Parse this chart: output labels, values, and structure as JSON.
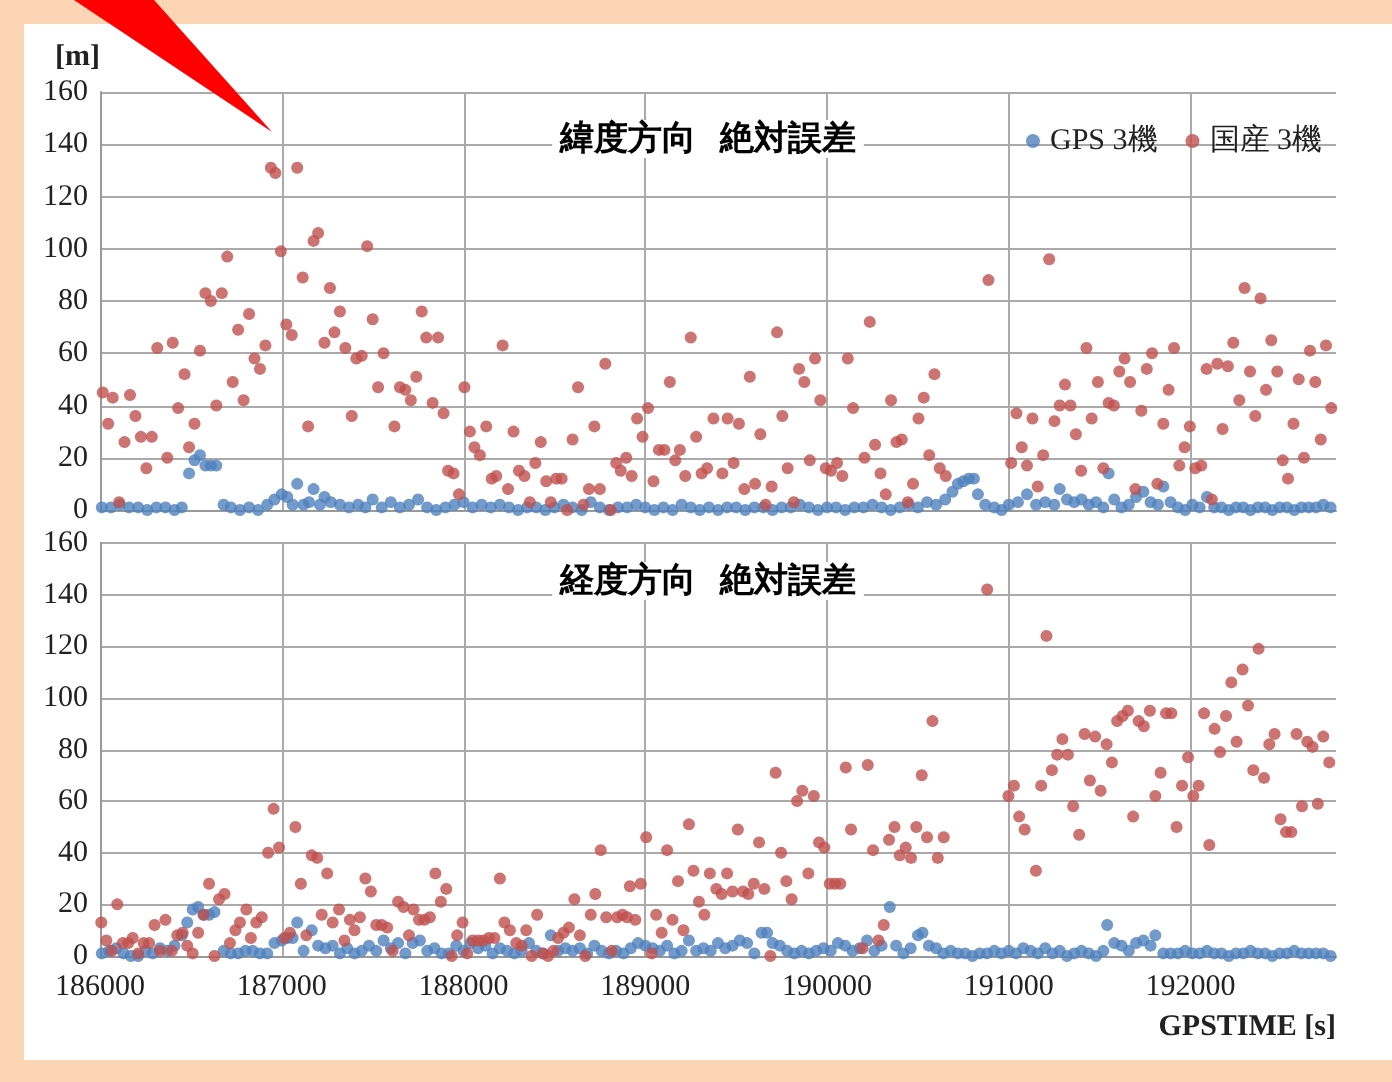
{
  "chart_data": [
    {
      "type": "scatter",
      "title": "緯度方向  絶対誤差",
      "ylabel": "[m]",
      "xlim": [
        186000,
        192800
      ],
      "xticks": [
        186000,
        187000,
        188000,
        189000,
        190000,
        191000,
        192000
      ],
      "ylim": [
        0,
        160
      ],
      "yticks": [
        0,
        20,
        40,
        60,
        80,
        100,
        120,
        140,
        160
      ],
      "grid": true,
      "legend": "top right",
      "marker": "circle",
      "tick_labels": "y",
      "series": [
        {
          "name": "GPS 3機",
          "color": "#4f81bd",
          "x": [
            186010,
            186060,
            186110,
            186160,
            186210,
            186260,
            186310,
            186360,
            186410,
            186450,
            186490,
            186520,
            186550,
            186580,
            186610,
            186640,
            186680,
            186720,
            186770,
            186820,
            186870,
            186920,
            186960,
            187000,
            187030,
            187060,
            187085,
            187120,
            187150,
            187175,
            187210,
            187235,
            187270,
            187320,
            187370,
            187420,
            187460,
            187500,
            187550,
            187600,
            187650,
            187700,
            187750,
            187800,
            187850,
            187900,
            187950,
            188000,
            188050,
            188100,
            188150,
            188200,
            188250,
            188300,
            188350,
            188400,
            188450,
            188500,
            188550,
            188600,
            188650,
            188700,
            188750,
            188800,
            188850,
            188900,
            188950,
            189000,
            189050,
            189100,
            189150,
            189200,
            189250,
            189300,
            189350,
            189400,
            189450,
            189500,
            189550,
            189600,
            189650,
            189700,
            189750,
            189800,
            189850,
            189900,
            189950,
            190000,
            190050,
            190100,
            190150,
            190200,
            190250,
            190300,
            190350,
            190400,
            190450,
            190500,
            190550,
            190600,
            190650,
            190690,
            190720,
            190750,
            190780,
            190808,
            190830,
            190870,
            190920,
            190960,
            191000,
            191050,
            191100,
            191150,
            191200,
            191250,
            191280,
            191320,
            191360,
            191400,
            191440,
            191480,
            191520,
            191549,
            191580,
            191620,
            191660,
            191700,
            191740,
            191780,
            191820,
            191850,
            191890,
            191930,
            191970,
            192010,
            192050,
            192090,
            192130,
            192170,
            192210,
            192250,
            192290,
            192330,
            192370,
            192410,
            192450,
            192490,
            192530,
            192570,
            192610,
            192650,
            192690,
            192730,
            192770
          ],
          "values": [
            1,
            1,
            2,
            1,
            1,
            0,
            1,
            1,
            0,
            1,
            14,
            19,
            21,
            17,
            17,
            17,
            2,
            1,
            0,
            1,
            0,
            2,
            4,
            6,
            5,
            2,
            10,
            2,
            3,
            8,
            2,
            5,
            3,
            2,
            1,
            2,
            1,
            4,
            1,
            3,
            1,
            2,
            4,
            1,
            0,
            1,
            2,
            3,
            1,
            2,
            1,
            2,
            1,
            0,
            1,
            1,
            0,
            1,
            2,
            1,
            0,
            3,
            1,
            0,
            1,
            1,
            2,
            1,
            0,
            1,
            0,
            2,
            1,
            0,
            1,
            0,
            1,
            1,
            0,
            1,
            1,
            0,
            1,
            1,
            2,
            1,
            0,
            1,
            1,
            0,
            1,
            1,
            2,
            1,
            0,
            1,
            2,
            1,
            3,
            2,
            4,
            7,
            10,
            11,
            12,
            12,
            6,
            2,
            1,
            0,
            2,
            3,
            6,
            2,
            3,
            2,
            8,
            4,
            3,
            4,
            2,
            3,
            1,
            14,
            4,
            1,
            2,
            5,
            7,
            3,
            2,
            9,
            3,
            1,
            0,
            2,
            1,
            5,
            1,
            1,
            0,
            1,
            1,
            0,
            1,
            1,
            0,
            1,
            1,
            0,
            1,
            1,
            1,
            2,
            1
          ]
        },
        {
          "name": "国産 3機",
          "color": "#c0504d",
          "x": [
            186015,
            186045,
            186070,
            186105,
            186135,
            186165,
            186195,
            186225,
            186255,
            186285,
            186315,
            186370,
            186400,
            186430,
            186465,
            186490,
            186520,
            186550,
            186580,
            186610,
            186640,
            186670,
            186700,
            186730,
            186760,
            186790,
            186820,
            186850,
            186880,
            186910,
            186940,
            186965,
            186995,
            187025,
            187055,
            187085,
            187115,
            187145,
            187175,
            187200,
            187235,
            187265,
            187290,
            187320,
            187350,
            187385,
            187410,
            187440,
            187470,
            187500,
            187530,
            187560,
            187620,
            187650,
            187680,
            187710,
            187740,
            187770,
            187795,
            187830,
            187860,
            187890,
            187915,
            187945,
            187975,
            188005,
            188035,
            188060,
            188090,
            188125,
            188155,
            188180,
            188215,
            188245,
            188275,
            188305,
            188335,
            188365,
            188395,
            188425,
            188455,
            188480,
            188510,
            188540,
            188570,
            188600,
            188630,
            188660,
            188690,
            188720,
            188750,
            188780,
            188810,
            188840,
            188865,
            188895,
            188925,
            188955,
            188985,
            189015,
            189045,
            189075,
            189105,
            189135,
            189165,
            189190,
            189220,
            189250,
            189280,
            189310,
            189340,
            189375,
            189424,
            189453,
            189486,
            189515,
            189545,
            189575,
            189604,
            189633,
            189662,
            189695,
            189725,
            189754,
            189783,
            189817,
            189846,
            189875,
            189905,
            189934,
            189963,
            189993,
            190022,
            190055,
            190084,
            190114,
            190143,
            190206,
            190235,
            190264,
            190294,
            190323,
            190352,
            190382,
            190411,
            190444,
            190473,
            190503,
            190532,
            190562,
            190591,
            190620,
            190653,
            190888,
            191013,
            191042,
            191071,
            191100,
            191130,
            191159,
            191189,
            191222,
            191251,
            191280,
            191309,
            191339,
            191369,
            191398,
            191427,
            191456,
            191490,
            191520,
            191549,
            191578,
            191608,
            191637,
            191667,
            191696,
            191729,
            191759,
            191788,
            191817,
            191850,
            191879,
            191909,
            191938,
            191967,
            191996,
            192026,
            192059,
            192088,
            192117,
            192147,
            192176,
            192205,
            192235,
            192268,
            192297,
            192327,
            192356,
            192385,
            192415,
            192444,
            192477,
            192507,
            192536,
            192566,
            192595,
            192624,
            192657,
            192686,
            192716,
            192745,
            192774
          ],
          "values": [
            45,
            33,
            43,
            3,
            26,
            44,
            36,
            28,
            16,
            28,
            62,
            20,
            64,
            39,
            52,
            24,
            33,
            61,
            83,
            80,
            40,
            83,
            97,
            49,
            69,
            42,
            75,
            58,
            54,
            63,
            131,
            129,
            99,
            71,
            67,
            131,
            89,
            32,
            103,
            106,
            64,
            85,
            68,
            76,
            62,
            36,
            58,
            59,
            101,
            73,
            47,
            60,
            32,
            47,
            46,
            42,
            51,
            76,
            66,
            41,
            66,
            37,
            15,
            14,
            6,
            47,
            30,
            24,
            21,
            32,
            12,
            13,
            63,
            8,
            30,
            15,
            13,
            3,
            18,
            26,
            11,
            3,
            12,
            12,
            0,
            27,
            47,
            2,
            8,
            32,
            8,
            56,
            0,
            18,
            15,
            20,
            13,
            35,
            28,
            39,
            11,
            23,
            23,
            49,
            19,
            23,
            13,
            66,
            28,
            14,
            16,
            35,
            14,
            35,
            18,
            33,
            8,
            51,
            10,
            29,
            2,
            9,
            68,
            36,
            16,
            3,
            54,
            49,
            19,
            58,
            42,
            16,
            15,
            18,
            13,
            58,
            39,
            20,
            72,
            25,
            14,
            6,
            42,
            26,
            27,
            3,
            10,
            35,
            43,
            21,
            52,
            16,
            13,
            88,
            18,
            37,
            24,
            17,
            35,
            9,
            21,
            96,
            34,
            40,
            48,
            40,
            29,
            15,
            62,
            35,
            49,
            16,
            41,
            40,
            53,
            58,
            49,
            8,
            38,
            54,
            60,
            10,
            33,
            46,
            62,
            17,
            24,
            32,
            16,
            17,
            54,
            4,
            56,
            31,
            55,
            64,
            42,
            85,
            53,
            36,
            81,
            46,
            65,
            53,
            19,
            12,
            33,
            50,
            20,
            61,
            49,
            27,
            63,
            39
          ]
        }
      ]
    },
    {
      "type": "scatter",
      "title": "経度方向  絶対誤差",
      "xlabel": "GPSTIME [s]",
      "xlim": [
        186000,
        192800
      ],
      "xticks": [
        186000,
        187000,
        188000,
        189000,
        190000,
        191000,
        192000
      ],
      "ylim": [
        0,
        160
      ],
      "yticks": [
        0,
        20,
        40,
        60,
        80,
        100,
        120,
        140,
        160
      ],
      "grid": true,
      "marker": "circle",
      "series": [
        {
          "color": "#4f81bd",
          "x": [
            186010,
            186050,
            186090,
            186130,
            186170,
            186210,
            186250,
            186290,
            186330,
            186370,
            186410,
            186450,
            186480,
            186510,
            186540,
            186570,
            186600,
            186630,
            186680,
            186720,
            186760,
            186800,
            186840,
            186880,
            186920,
            186960,
            187000,
            187030,
            187060,
            187085,
            187120,
            187165,
            187200,
            187240,
            187280,
            187320,
            187360,
            187400,
            187440,
            187480,
            187520,
            187560,
            187600,
            187640,
            187680,
            187720,
            187760,
            187800,
            187840,
            187880,
            187920,
            187960,
            188000,
            188040,
            188080,
            188120,
            188160,
            188200,
            188240,
            188280,
            188320,
            188360,
            188400,
            188440,
            188480,
            188520,
            188560,
            188600,
            188640,
            188680,
            188720,
            188760,
            188800,
            188840,
            188880,
            188920,
            188960,
            189000,
            189040,
            189080,
            189120,
            189160,
            189200,
            189240,
            189280,
            189320,
            189360,
            189400,
            189440,
            189480,
            189520,
            189560,
            189600,
            189640,
            189670,
            189700,
            189740,
            189780,
            189820,
            189860,
            189900,
            189940,
            189980,
            190020,
            190060,
            190100,
            190140,
            190180,
            190220,
            190260,
            190300,
            190345,
            190380,
            190420,
            190460,
            190500,
            190525,
            190560,
            190600,
            190640,
            190680,
            190720,
            190760,
            190800,
            190840,
            190880,
            190920,
            190960,
            191000,
            191040,
            191080,
            191120,
            191160,
            191200,
            191240,
            191280,
            191320,
            191360,
            191400,
            191440,
            191480,
            191520,
            191541,
            191580,
            191620,
            191660,
            191700,
            191740,
            191780,
            191806,
            191850,
            191890,
            191930,
            191970,
            192010,
            192050,
            192090,
            192130,
            192170,
            192210,
            192250,
            192290,
            192330,
            192370,
            192410,
            192450,
            192490,
            192530,
            192570,
            192610,
            192650,
            192690,
            192730,
            192770
          ],
          "values": [
            1,
            2,
            3,
            1,
            0,
            0,
            2,
            1,
            3,
            2,
            4,
            8,
            13,
            18,
            19,
            16,
            16,
            17,
            2,
            1,
            1,
            2,
            2,
            1,
            1,
            5,
            6,
            7,
            7,
            13,
            2,
            10,
            4,
            3,
            4,
            1,
            3,
            1,
            2,
            4,
            2,
            6,
            3,
            5,
            1,
            5,
            6,
            2,
            3,
            1,
            1,
            4,
            2,
            5,
            3,
            4,
            1,
            3,
            2,
            1,
            2,
            5,
            2,
            1,
            8,
            2,
            3,
            2,
            3,
            1,
            4,
            2,
            1,
            2,
            1,
            3,
            5,
            4,
            3,
            2,
            4,
            1,
            2,
            6,
            2,
            3,
            2,
            5,
            3,
            4,
            6,
            5,
            1,
            9,
            9,
            5,
            4,
            2,
            1,
            2,
            1,
            2,
            3,
            2,
            5,
            4,
            2,
            3,
            6,
            2,
            4,
            19,
            4,
            1,
            3,
            8,
            9,
            4,
            3,
            1,
            2,
            1,
            1,
            0,
            1,
            1,
            2,
            1,
            2,
            1,
            3,
            2,
            1,
            3,
            1,
            2,
            0,
            1,
            2,
            1,
            0,
            2,
            12,
            5,
            4,
            2,
            5,
            6,
            4,
            8,
            1,
            1,
            1,
            2,
            1,
            1,
            2,
            1,
            1,
            0,
            1,
            1,
            2,
            1,
            1,
            0,
            1,
            1,
            2,
            1,
            1,
            1,
            1,
            0
          ]
        },
        {
          "color": "#c0504d",
          "x": [
            186007,
            186035,
            186065,
            186095,
            186125,
            186155,
            186180,
            186210,
            186240,
            186270,
            186300,
            186330,
            186360,
            186395,
            186425,
            186455,
            186480,
            186510,
            186540,
            186570,
            186600,
            186630,
            186655,
            186685,
            186715,
            186745,
            186770,
            186805,
            186830,
            186860,
            186890,
            186925,
            186955,
            186985,
            187015,
            187045,
            187075,
            187105,
            187135,
            187165,
            187195,
            187220,
            187250,
            187280,
            187315,
            187345,
            187375,
            187400,
            187430,
            187460,
            187490,
            187520,
            187550,
            187580,
            187610,
            187640,
            187670,
            187700,
            187725,
            187755,
            187785,
            187815,
            187845,
            187875,
            187905,
            187935,
            187965,
            187995,
            188020,
            188050,
            188080,
            188110,
            188140,
            188170,
            188200,
            188225,
            188255,
            188290,
            188320,
            188345,
            188375,
            188405,
            188435,
            188465,
            188495,
            188520,
            188550,
            188580,
            188610,
            188640,
            188670,
            188700,
            188725,
            188755,
            188785,
            188815,
            188845,
            188875,
            188900,
            188915,
            188945,
            188975,
            189005,
            189035,
            189060,
            189090,
            189120,
            189150,
            189180,
            189210,
            189240,
            189265,
            189295,
            189325,
            189355,
            189391,
            189420,
            189450,
            189480,
            189509,
            189538,
            189567,
            189597,
            189626,
            189655,
            189688,
            189717,
            189747,
            189776,
            189805,
            189835,
            189864,
            189897,
            189927,
            189956,
            189985,
            190015,
            190044,
            190073,
            190103,
            190132,
            190195,
            190224,
            190253,
            190283,
            190312,
            190341,
            190371,
            190400,
            190433,
            190462,
            190491,
            190521,
            190550,
            190580,
            190609,
            190642,
            190881,
            190998,
            191028,
            191057,
            191087,
            191149,
            191178,
            191207,
            191237,
            191266,
            191295,
            191325,
            191354,
            191387,
            191417,
            191446,
            191475,
            191505,
            191538,
            191567,
            191596,
            191626,
            191655,
            191684,
            191714,
            191743,
            191776,
            191806,
            191835,
            191865,
            191894,
            191923,
            191953,
            191986,
            192015,
            192044,
            192074,
            192103,
            192132,
            192162,
            192195,
            192224,
            192253,
            192286,
            192316,
            192345,
            192374,
            192404,
            192433,
            192462,
            192495,
            192525,
            192554,
            192583,
            192613,
            192642,
            192671,
            192700,
            192730,
            192763
          ],
          "values": [
            13,
            6,
            2,
            20,
            5,
            5,
            7,
            1,
            5,
            5,
            12,
            2,
            14,
            2,
            8,
            9,
            4,
            1,
            9,
            16,
            28,
            0,
            22,
            24,
            5,
            10,
            13,
            18,
            7,
            13,
            15,
            40,
            57,
            42,
            7,
            9,
            50,
            28,
            8,
            39,
            38,
            16,
            32,
            13,
            18,
            6,
            14,
            10,
            15,
            30,
            25,
            12,
            12,
            11,
            2,
            21,
            19,
            8,
            18,
            14,
            14,
            15,
            32,
            21,
            26,
            0,
            8,
            13,
            1,
            6,
            6,
            6,
            7,
            7,
            30,
            13,
            10,
            5,
            4,
            10,
            0,
            16,
            1,
            0,
            2,
            7,
            9,
            11,
            22,
            8,
            0,
            16,
            24,
            41,
            15,
            2,
            15,
            16,
            15,
            27,
            14,
            28,
            46,
            1,
            16,
            9,
            41,
            14,
            29,
            10,
            51,
            33,
            21,
            16,
            32,
            26,
            24,
            32,
            25,
            49,
            25,
            24,
            28,
            44,
            26,
            0,
            71,
            40,
            29,
            22,
            60,
            64,
            32,
            62,
            44,
            42,
            28,
            28,
            28,
            73,
            49,
            3,
            74,
            41,
            6,
            12,
            45,
            50,
            39,
            42,
            38,
            50,
            70,
            46,
            91,
            38,
            46,
            142,
            62,
            66,
            54,
            49,
            33,
            66,
            124,
            72,
            78,
            84,
            78,
            58,
            47,
            86,
            68,
            85,
            64,
            82,
            75,
            91,
            93,
            95,
            54,
            91,
            89,
            95,
            62,
            71,
            94,
            94,
            50,
            66,
            77,
            62,
            66,
            94,
            43,
            88,
            79,
            93,
            106,
            83,
            111,
            97,
            72,
            119,
            69,
            82,
            86,
            53,
            48,
            48,
            86,
            58,
            83,
            81,
            59,
            85,
            75
          ]
        }
      ]
    }
  ]
}
